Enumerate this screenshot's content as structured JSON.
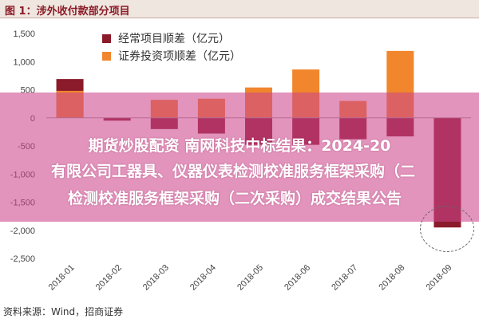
{
  "header": {
    "title": "图 1：涉外收付款部分项目"
  },
  "source": "资料来源：Wind，招商证券",
  "overlay": {
    "line1": "期货炒股配资 南网科技中标结果：2024-20",
    "line2": "有限公司工器具、仪器仪表检测校准服务框架采购（二",
    "line3": "检测校准服务框架采购（二次采购）成交结果公告"
  },
  "colors": {
    "series1": "#8b1a2b",
    "series2": "#f1862d",
    "background": "#ffffff"
  },
  "chart_data": {
    "type": "bar",
    "categories": [
      "2018-01",
      "2018-02",
      "2018-03",
      "2018-04",
      "2018-05",
      "2018-06",
      "2018-07",
      "2018-08",
      "2018-09"
    ],
    "series": [
      {
        "name": "经常项目顺差（亿元）",
        "values": [
          690,
          -50,
          -200,
          -280,
          -480,
          -480,
          -380,
          -330,
          -1950
        ]
      },
      {
        "name": "证券投资项顺差（亿元）",
        "values": [
          480,
          0,
          320,
          340,
          540,
          860,
          300,
          1190,
          0
        ]
      }
    ],
    "ylim": [
      -2500,
      1500
    ],
    "yticks": [
      1500,
      1000,
      500,
      0,
      -500,
      -1000,
      -1500,
      -2000,
      -2500
    ],
    "ytick_labels": [
      "1,500",
      "1,000",
      "500",
      "0",
      "-500",
      "-1,000",
      "-1,500",
      "-2,000",
      "-2,500"
    ],
    "legend": "top-left",
    "grid": false
  }
}
